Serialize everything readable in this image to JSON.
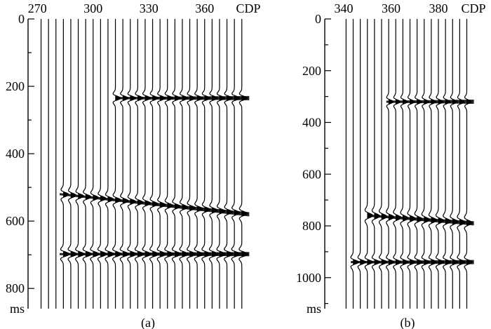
{
  "chart_data": [
    {
      "type": "seismic-wiggle",
      "panel_label": "(a)",
      "x_tick_labels": [
        "270",
        "300",
        "330",
        "360"
      ],
      "x_unit": "CDP",
      "x_ticks": [
        270,
        300,
        330,
        360
      ],
      "xlim": [
        265,
        385
      ],
      "y_tick_labels": [
        "0",
        "200",
        "400",
        "600",
        "800"
      ],
      "y_unit": "ms",
      "y_ticks": [
        0,
        200,
        400,
        600,
        800
      ],
      "ylim": [
        0,
        860
      ],
      "minor_y_step": 100,
      "trace_cdp_start": 272,
      "trace_cdp_step": 4,
      "trace_count": 28,
      "events": [
        {
          "start_cdp": 312,
          "end_cdp": 384,
          "t_start": 235,
          "t_end": 235,
          "amp": 3.5,
          "width": 7
        },
        {
          "start_cdp": 282,
          "end_cdp": 384,
          "t_start": 520,
          "t_end": 580,
          "amp": 3.5,
          "width": 8
        },
        {
          "start_cdp": 282,
          "end_cdp": 384,
          "t_start": 698,
          "t_end": 698,
          "amp": 4,
          "width": 8
        }
      ]
    },
    {
      "type": "seismic-wiggle",
      "panel_label": "(b)",
      "x_tick_labels": [
        "340",
        "360",
        "380"
      ],
      "x_unit": "CDP",
      "x_ticks": [
        340,
        360,
        380
      ],
      "xlim": [
        332,
        396
      ],
      "y_tick_labels": [
        "0",
        "200",
        "400",
        "600",
        "800",
        "1000"
      ],
      "y_unit": "ms",
      "y_ticks": [
        0,
        200,
        400,
        600,
        800,
        1000
      ],
      "ylim": [
        0,
        1120
      ],
      "minor_y_step": 100,
      "trace_cdp_start": 341,
      "trace_cdp_step": 3,
      "trace_count": 18,
      "events": [
        {
          "start_cdp": 358,
          "end_cdp": 395,
          "t_start": 320,
          "t_end": 320,
          "amp": 3,
          "width": 9
        },
        {
          "start_cdp": 350,
          "end_cdp": 395,
          "t_start": 760,
          "t_end": 790,
          "amp": 3.5,
          "width": 12
        },
        {
          "start_cdp": 343,
          "end_cdp": 395,
          "t_start": 940,
          "t_end": 940,
          "amp": 3.5,
          "width": 10
        }
      ]
    }
  ]
}
